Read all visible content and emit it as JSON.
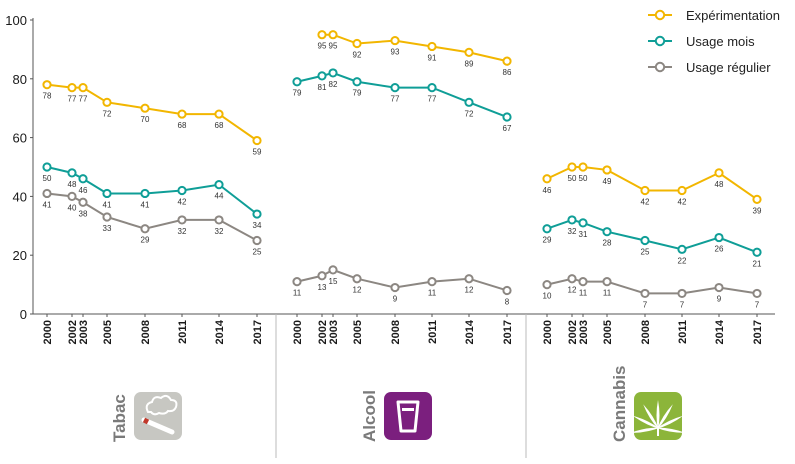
{
  "chart_data": {
    "type": "line",
    "ylim": [
      0,
      100
    ],
    "yticks": [
      0,
      20,
      40,
      60,
      80,
      100
    ],
    "grid": false,
    "legend_position": "top-right",
    "legend": [
      {
        "name": "Expérimentation",
        "color": "#f2b600"
      },
      {
        "name": "Usage mois",
        "color": "#0f9e97"
      },
      {
        "name": "Usage régulier",
        "color": "#8c8782"
      }
    ],
    "panels": [
      {
        "label": "Tabac",
        "icon": "cigarette-icon",
        "x": [
          "2000",
          "2002",
          "2003",
          "2005",
          "2008",
          "2011",
          "2014",
          "2017"
        ],
        "series": [
          {
            "name": "Expérimentation",
            "values": [
              78,
              77,
              77,
              72,
              70,
              68,
              68,
              59
            ]
          },
          {
            "name": "Usage mois",
            "values": [
              50,
              48,
              46,
              41,
              41,
              42,
              44,
              34
            ]
          },
          {
            "name": "Usage régulier",
            "values": [
              41,
              40,
              38,
              33,
              29,
              32,
              32,
              25
            ]
          }
        ]
      },
      {
        "label": "Alcool",
        "icon": "beer-glass-icon",
        "x": [
          "2000",
          "2002",
          "2003",
          "2005",
          "2008",
          "2011",
          "2014",
          "2017"
        ],
        "series": [
          {
            "name": "Expérimentation",
            "values": [
              null,
              95,
              95,
              92,
              93,
              91,
              89,
              86
            ]
          },
          {
            "name": "Usage mois",
            "values": [
              79,
              81,
              82,
              79,
              77,
              77,
              72,
              67
            ]
          },
          {
            "name": "Usage régulier",
            "values": [
              11,
              13,
              15,
              12,
              9,
              11,
              12,
              8
            ]
          }
        ]
      },
      {
        "label": "Cannabis",
        "icon": "cannabis-leaf-icon",
        "x": [
          "2000",
          "2002",
          "2003",
          "2005",
          "2008",
          "2011",
          "2014",
          "2017"
        ],
        "series": [
          {
            "name": "Expérimentation",
            "values": [
              46,
              50,
              50,
              49,
              42,
              42,
              48,
              39
            ]
          },
          {
            "name": "Usage mois",
            "values": [
              29,
              32,
              31,
              28,
              25,
              22,
              26,
              21
            ]
          },
          {
            "name": "Usage régulier",
            "values": [
              10,
              12,
              11,
              11,
              7,
              7,
              9,
              7
            ]
          }
        ]
      }
    ]
  }
}
